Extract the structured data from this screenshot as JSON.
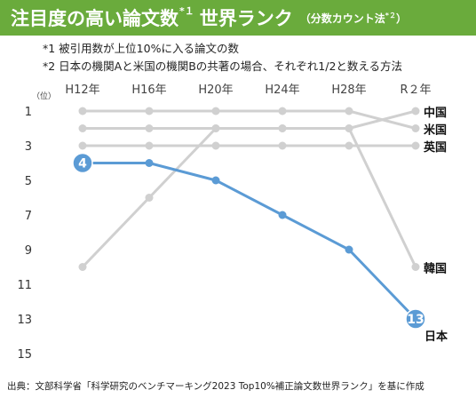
{
  "title": {
    "main": "注目度の高い論文数",
    "sup": "*１",
    "main2": "世界ランク",
    "sub_prefix": "（分数カウント法",
    "sub_sup": "*２",
    "sub_suffix": "）"
  },
  "notes": [
    "*1 被引用数が上位10%に入る論文の数",
    "*2 日本の機関Aと米国の機関Bの共著の場合、それぞれ1/2と数える方法"
  ],
  "source": "出典：文部科学省「科学研究のベンチマーキング2023 Top10%補正論文数世界ランク」を基に作成",
  "chart_data": {
    "type": "line",
    "title": "注目度の高い論文数 世界ランク",
    "subtitle": "（分数カウント法*２）",
    "ylabel": "（位）",
    "categories": [
      "H12年",
      "H16年",
      "H20年",
      "H24年",
      "H28年",
      "R２年"
    ],
    "y_ticks": [
      1,
      3,
      5,
      7,
      9,
      11,
      13,
      15
    ],
    "ylim": [
      1,
      15
    ],
    "y_inverted": true,
    "grid": false,
    "colors": {
      "highlight": "#5b9bd5",
      "other": "#d0d0d0",
      "title_bg": "#6aab3c"
    },
    "series": [
      {
        "name": "中国",
        "values": [
          2,
          2,
          2,
          2,
          2,
          1
        ],
        "highlight": false
      },
      {
        "name": "米国",
        "values": [
          1,
          1,
          1,
          1,
          1,
          2
        ],
        "highlight": false
      },
      {
        "name": "英国",
        "values": [
          3,
          3,
          3,
          3,
          3,
          3
        ],
        "highlight": false
      },
      {
        "name": "韓国",
        "values": [
          10,
          6,
          2,
          2,
          2,
          10
        ],
        "highlight": false
      },
      {
        "name": "日本",
        "values": [
          4,
          4,
          5,
          7,
          9,
          13
        ],
        "highlight": true,
        "end_labels": [
          "4",
          "13"
        ]
      }
    ]
  }
}
